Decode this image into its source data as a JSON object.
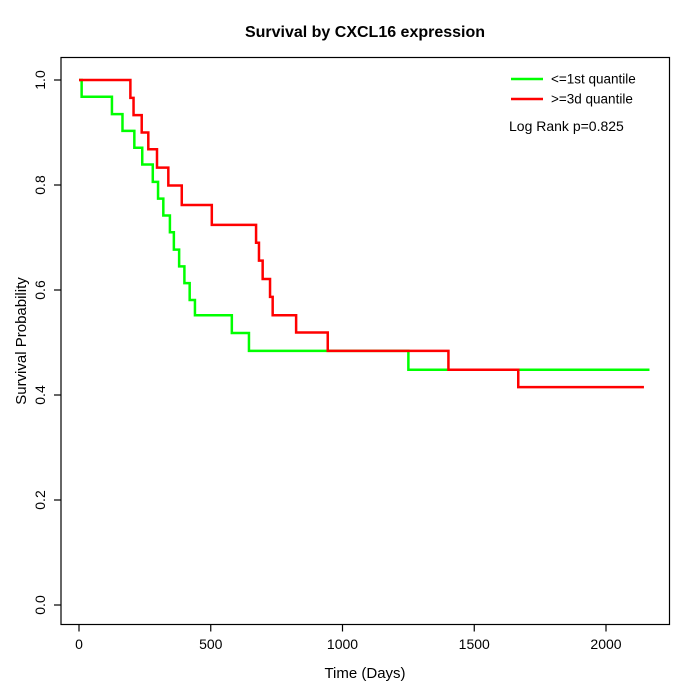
{
  "chart_data": {
    "type": "line",
    "subtype": "kaplan-meier-step",
    "title": "Survival by CXCL16 expression",
    "xlabel": "Time (Days)",
    "ylabel": "Survival Probability",
    "xlim": [
      0,
      2000
    ],
    "ylim": [
      0.0,
      1.0
    ],
    "grid": false,
    "x_axis": {
      "ticks": [
        0,
        500,
        1000,
        1500,
        2000
      ],
      "tick_labels": [
        "0",
        "500",
        "1000",
        "1500",
        "2000"
      ]
    },
    "y_axis": {
      "ticks": [
        0.0,
        0.2,
        0.4,
        0.6,
        0.8,
        1.0
      ],
      "tick_labels": [
        "0.0",
        "0.2",
        "0.4",
        "0.6",
        "0.8",
        "1.0"
      ]
    },
    "legend_position": "top-right",
    "annotation": "Log Rank p=0.825",
    "series": [
      {
        "name": "<=1st quantile",
        "color": "#00FF00",
        "end_time": 2165,
        "steps": [
          [
            0,
            1.0
          ],
          [
            10,
            0.968
          ],
          [
            125,
            0.935
          ],
          [
            165,
            0.903
          ],
          [
            210,
            0.871
          ],
          [
            240,
            0.839
          ],
          [
            280,
            0.806
          ],
          [
            300,
            0.774
          ],
          [
            320,
            0.742
          ],
          [
            345,
            0.71
          ],
          [
            360,
            0.677
          ],
          [
            380,
            0.645
          ],
          [
            400,
            0.613
          ],
          [
            420,
            0.581
          ],
          [
            440,
            0.552
          ],
          [
            580,
            0.518
          ],
          [
            645,
            0.484
          ],
          [
            1250,
            0.448
          ]
        ]
      },
      {
        "name": ">=3d quantile",
        "color": "#FF0000",
        "end_time": 2144,
        "steps": [
          [
            0,
            1.0
          ],
          [
            195,
            0.966
          ],
          [
            207,
            0.933
          ],
          [
            238,
            0.9
          ],
          [
            263,
            0.868
          ],
          [
            296,
            0.833
          ],
          [
            339,
            0.799
          ],
          [
            390,
            0.762
          ],
          [
            504,
            0.724
          ],
          [
            672,
            0.69
          ],
          [
            683,
            0.656
          ],
          [
            697,
            0.621
          ],
          [
            725,
            0.587
          ],
          [
            735,
            0.552
          ],
          [
            824,
            0.519
          ],
          [
            944,
            0.484
          ],
          [
            1402,
            0.448
          ],
          [
            1667,
            0.415
          ]
        ]
      }
    ]
  }
}
